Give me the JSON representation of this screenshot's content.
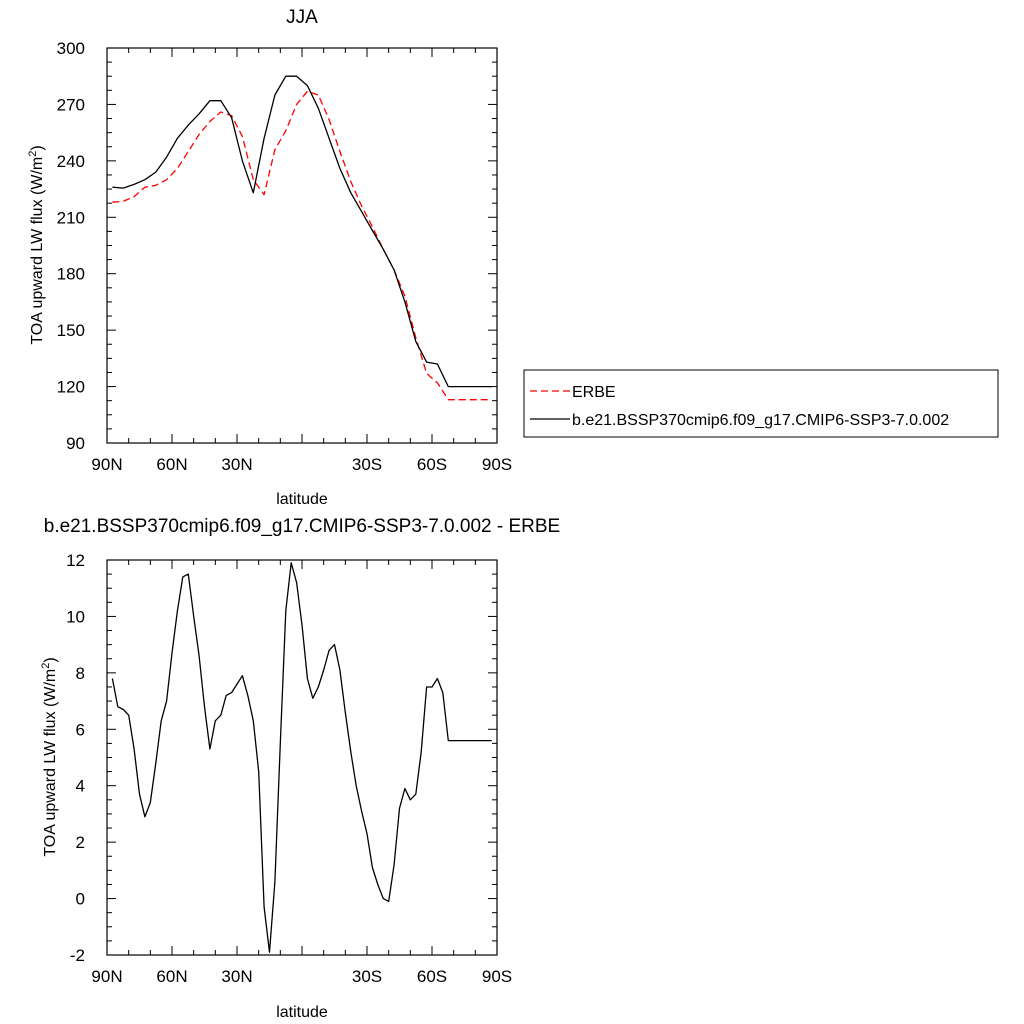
{
  "chart_data": [
    {
      "type": "line",
      "title": "JJA",
      "xlabel": "latitude",
      "ylabel": "TOA upward LW flux (W/m",
      "ylabel_sup": "2",
      "ylabel_end": ")",
      "xlim": [
        90,
        -90
      ],
      "ylim": [
        90,
        300
      ],
      "xtick_values": [
        90,
        60,
        30,
        0,
        -30,
        -60,
        -90
      ],
      "xtick_labels": [
        "90N",
        "60N",
        "30N",
        "",
        "30S",
        "60S",
        "90S"
      ],
      "ytick_values": [
        90,
        120,
        150,
        180,
        210,
        240,
        270,
        300
      ],
      "ytick_labels": [
        "90",
        "120",
        "150",
        "180",
        "210",
        "240",
        "270",
        "300"
      ],
      "legend_position": "right",
      "series": [
        {
          "name": "ERBE",
          "color": "#ff0000",
          "style": "dashed",
          "x": [
            87.5,
            82.5,
            77.5,
            72.5,
            67.5,
            62.5,
            57.5,
            52.5,
            47.5,
            42.5,
            37.5,
            32.5,
            27.5,
            22.5,
            17.5,
            12.5,
            7.5,
            2.5,
            -2.5,
            -7.5,
            -12.5,
            -17.5,
            -22.5,
            -27.5,
            -32.5,
            -37.5,
            -42.5,
            -47.5,
            -52.5,
            -57.5,
            -62.5,
            -67.5,
            -72.5,
            -77.5,
            -82.5,
            -87.5
          ],
          "y": [
            218,
            218.5,
            221,
            226,
            227,
            230,
            236,
            245,
            254,
            261,
            266,
            264,
            253,
            230,
            222,
            246,
            256,
            270,
            277,
            275,
            262,
            245,
            229,
            216,
            205,
            193,
            182,
            168,
            146,
            127,
            122,
            113,
            113,
            113,
            113,
            113
          ]
        },
        {
          "name": "b.e21.BSSP370cmip6.f09_g17.CMIP6-SSP3-7.0.002",
          "color": "#000000",
          "style": "solid",
          "x": [
            87.5,
            82.5,
            77.5,
            72.5,
            67.5,
            62.5,
            57.5,
            52.5,
            47.5,
            42.5,
            37.5,
            32.5,
            27.5,
            22.5,
            17.5,
            12.5,
            7.5,
            2.5,
            -2.5,
            -7.5,
            -12.5,
            -17.5,
            -22.5,
            -27.5,
            -32.5,
            -37.5,
            -42.5,
            -47.5,
            -52.5,
            -57.5,
            -62.5,
            -67.5,
            -72.5,
            -77.5,
            -82.5,
            -87.5
          ],
          "y": [
            226,
            225.5,
            227.5,
            230,
            234,
            242,
            252,
            259,
            265,
            272,
            272,
            263,
            240,
            223,
            252,
            275,
            285,
            285,
            280,
            268,
            252,
            236,
            223,
            213,
            203,
            193,
            182,
            165,
            144,
            133,
            132,
            120,
            120,
            120,
            120,
            120
          ]
        }
      ]
    },
    {
      "type": "line",
      "title": "b.e21.BSSP370cmip6.f09_g17.CMIP6-SSP3-7.0.002 - ERBE",
      "xlabel": "latitude",
      "ylabel": "TOA upward LW flux (W/m",
      "ylabel_sup": "2",
      "ylabel_end": ")",
      "xlim": [
        90,
        -90
      ],
      "ylim": [
        -2,
        12
      ],
      "xtick_values": [
        90,
        60,
        30,
        0,
        -30,
        -60,
        -90
      ],
      "xtick_labels": [
        "90N",
        "60N",
        "30N",
        "",
        "30S",
        "60S",
        "90S"
      ],
      "ytick_values": [
        -2,
        0,
        2,
        4,
        6,
        8,
        10,
        12
      ],
      "ytick_labels": [
        "-2",
        "0",
        "2",
        "4",
        "6",
        "8",
        "10",
        "12"
      ],
      "series": [
        {
          "name": "",
          "color": "#000000",
          "style": "solid",
          "x": [
            87.5,
            85,
            82.5,
            80,
            77.5,
            75,
            72.5,
            70,
            67.5,
            65,
            62.5,
            60,
            57.5,
            55,
            52.5,
            50,
            47.5,
            45,
            42.5,
            40,
            37.5,
            35,
            32.5,
            30,
            27.5,
            25,
            22.5,
            20,
            17.5,
            15,
            12.5,
            10,
            7.5,
            5,
            2.5,
            0,
            -2.5,
            -5,
            -7.5,
            -10,
            -12.5,
            -15,
            -17.5,
            -20,
            -22.5,
            -25,
            -27.5,
            -30,
            -32.5,
            -35,
            -37.5,
            -40,
            -42.5,
            -45,
            -47.5,
            -50,
            -52.5,
            -55,
            -57.5,
            -60,
            -62.5,
            -65,
            -67.5,
            -70,
            -72.5,
            -75,
            -77.5,
            -80,
            -82.5,
            -85,
            -87.5
          ],
          "y": [
            7.8,
            6.8,
            6.7,
            6.5,
            5.3,
            3.7,
            2.9,
            3.4,
            4.8,
            6.3,
            7.0,
            8.7,
            10.2,
            11.4,
            11.5,
            10.0,
            8.6,
            6.8,
            5.3,
            6.3,
            6.5,
            7.2,
            7.3,
            7.6,
            7.9,
            7.2,
            6.3,
            4.5,
            -0.3,
            -1.9,
            0.6,
            5.5,
            10.2,
            11.9,
            11.2,
            9.7,
            7.8,
            7.1,
            7.5,
            8.1,
            8.8,
            9.0,
            8.1,
            6.6,
            5.2,
            4.0,
            3.1,
            2.3,
            1.1,
            0.5,
            0.0,
            -0.1,
            1.2,
            3.2,
            3.9,
            3.5,
            3.7,
            5.2,
            7.5,
            7.5,
            7.8,
            7.3,
            5.6,
            5.6,
            5.6,
            5.6,
            5.6,
            5.6,
            5.6,
            5.6,
            5.6
          ]
        }
      ]
    }
  ]
}
